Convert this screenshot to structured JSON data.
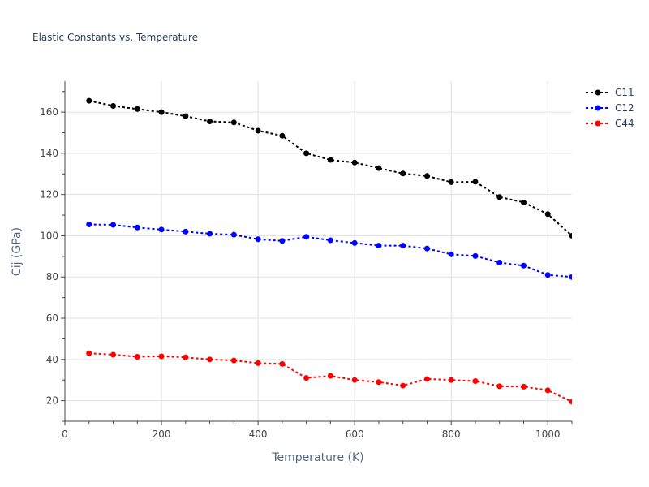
{
  "chart_data": {
    "type": "line",
    "title": "Elastic Constants vs. Temperature",
    "xlabel": "Temperature (K)",
    "ylabel": "Cij (GPa)",
    "xlim": [
      0,
      1050
    ],
    "ylim": [
      10,
      175
    ],
    "xticks": [
      0,
      200,
      400,
      600,
      800,
      1000
    ],
    "yticks": [
      20,
      40,
      60,
      80,
      100,
      120,
      140,
      160
    ],
    "grid": true,
    "legend_position": "top-right",
    "x": [
      50,
      100,
      150,
      200,
      250,
      300,
      350,
      400,
      450,
      500,
      550,
      600,
      650,
      700,
      750,
      800,
      850,
      900,
      950,
      1000,
      1050
    ],
    "series": [
      {
        "name": "C11",
        "color": "#000000",
        "values": [
          165.5,
          163,
          161.5,
          160,
          158,
          155.5,
          155,
          151,
          148.5,
          140,
          136.8,
          135.5,
          132.8,
          130.2,
          129,
          126,
          126.2,
          118.8,
          116.2,
          110.5,
          100
        ]
      },
      {
        "name": "C12",
        "color": "#0000ff",
        "values": [
          105.5,
          105.3,
          104,
          103,
          102,
          101,
          100.5,
          98.3,
          97.5,
          99.5,
          97.8,
          96.5,
          95.2,
          95.2,
          93.8,
          91,
          90.2,
          87,
          85.5,
          81,
          80
        ]
      },
      {
        "name": "C44",
        "color": "#ff0000",
        "values": [
          43,
          42.3,
          41.3,
          41.5,
          41,
          40,
          39.5,
          38.2,
          37.8,
          31,
          32,
          30,
          29,
          27.3,
          30.5,
          30,
          29.5,
          27,
          26.8,
          25,
          19.5
        ]
      }
    ]
  }
}
